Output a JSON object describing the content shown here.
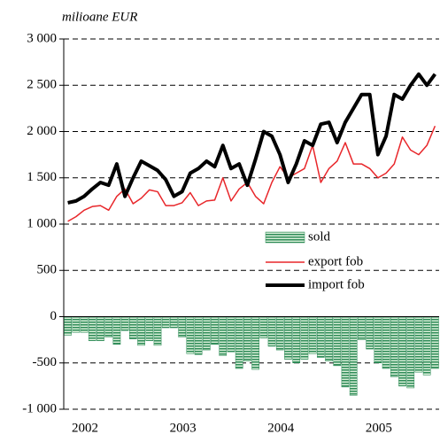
{
  "chart_data": {
    "type": "combo",
    "y_label": "milioane EUR",
    "categories": [
      "2002",
      null,
      null,
      null,
      null,
      null,
      null,
      null,
      null,
      null,
      null,
      null,
      "2003",
      null,
      null,
      null,
      null,
      null,
      null,
      null,
      null,
      null,
      null,
      null,
      "2004",
      null,
      null,
      null,
      null,
      null,
      null,
      null,
      null,
      null,
      null,
      null,
      "2005",
      null,
      null,
      null,
      null,
      null,
      null,
      null,
      null,
      null
    ],
    "series": [
      {
        "name": "sold",
        "type": "bar",
        "color": "#2e8b57",
        "values": [
          -200,
          -170,
          -170,
          -260,
          -260,
          -220,
          -300,
          -150,
          -240,
          -310,
          -260,
          -310,
          -120,
          -120,
          -220,
          -400,
          -410,
          -360,
          -300,
          -420,
          -380,
          -560,
          -480,
          -570,
          -230,
          -320,
          -360,
          -460,
          -500,
          -460,
          -400,
          -440,
          -480,
          -530,
          -760,
          -850,
          -250,
          -350,
          -500,
          -560,
          -650,
          -750,
          -770,
          -600,
          -630,
          -560
        ]
      },
      {
        "name": "export fob",
        "type": "line",
        "color": "#e8262a",
        "width": 1.5,
        "values": [
          1030,
          1080,
          1150,
          1190,
          1200,
          1150,
          1300,
          1380,
          1220,
          1280,
          1370,
          1350,
          1200,
          1200,
          1230,
          1340,
          1200,
          1250,
          1260,
          1500,
          1250,
          1380,
          1450,
          1300,
          1220,
          1450,
          1620,
          1500,
          1550,
          1600,
          1850,
          1450,
          1600,
          1680,
          1880,
          1650,
          1650,
          1600,
          1500,
          1550,
          1650,
          1940,
          1800,
          1750,
          1850,
          2060
        ]
      },
      {
        "name": "import fob",
        "type": "line",
        "color": "#000000",
        "width": 4,
        "values": [
          1230,
          1250,
          1300,
          1380,
          1450,
          1420,
          1650,
          1300,
          1500,
          1680,
          1630,
          1580,
          1480,
          1300,
          1350,
          1550,
          1600,
          1680,
          1620,
          1850,
          1600,
          1650,
          1420,
          1700,
          2000,
          1950,
          1750,
          1450,
          1650,
          1900,
          1850,
          2080,
          2100,
          1880,
          2100,
          2250,
          2400,
          2400,
          1750,
          1950,
          2400,
          2350,
          2500,
          2620,
          2500,
          2620
        ]
      }
    ],
    "ylim": [
      -1000,
      3000
    ],
    "yticks": [
      {
        "value": -1000,
        "label": "-1 000"
      },
      -500,
      0,
      500,
      {
        "value": 1000,
        "label": "1 000"
      },
      {
        "value": 1500,
        "label": "1 500"
      },
      {
        "value": 2000,
        "label": "2 000"
      },
      {
        "value": 2500,
        "label": "2 500"
      },
      {
        "value": 3000,
        "label": "3 000"
      }
    ],
    "grid": true
  }
}
